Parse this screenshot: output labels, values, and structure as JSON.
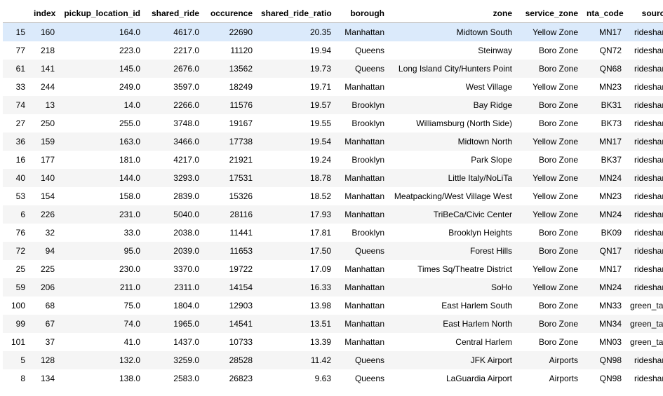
{
  "table": {
    "columns": [
      "",
      "index",
      "pickup_location_id",
      "shared_ride",
      "occurence",
      "shared_ride_ratio",
      "borough",
      "zone",
      "service_zone",
      "nta_code",
      "source"
    ],
    "rows": [
      [
        "15",
        "160",
        "164.0",
        "4617.0",
        "22690",
        "20.35",
        "Manhattan",
        "Midtown South",
        "Yellow Zone",
        "MN17",
        "rideshare"
      ],
      [
        "77",
        "218",
        "223.0",
        "2217.0",
        "11120",
        "19.94",
        "Queens",
        "Steinway",
        "Boro Zone",
        "QN72",
        "rideshare"
      ],
      [
        "61",
        "141",
        "145.0",
        "2676.0",
        "13562",
        "19.73",
        "Queens",
        "Long Island City/Hunters Point",
        "Boro Zone",
        "QN68",
        "rideshare"
      ],
      [
        "33",
        "244",
        "249.0",
        "3597.0",
        "18249",
        "19.71",
        "Manhattan",
        "West Village",
        "Yellow Zone",
        "MN23",
        "rideshare"
      ],
      [
        "74",
        "13",
        "14.0",
        "2266.0",
        "11576",
        "19.57",
        "Brooklyn",
        "Bay Ridge",
        "Boro Zone",
        "BK31",
        "rideshare"
      ],
      [
        "27",
        "250",
        "255.0",
        "3748.0",
        "19167",
        "19.55",
        "Brooklyn",
        "Williamsburg (North Side)",
        "Boro Zone",
        "BK73",
        "rideshare"
      ],
      [
        "36",
        "159",
        "163.0",
        "3466.0",
        "17738",
        "19.54",
        "Manhattan",
        "Midtown North",
        "Yellow Zone",
        "MN17",
        "rideshare"
      ],
      [
        "16",
        "177",
        "181.0",
        "4217.0",
        "21921",
        "19.24",
        "Brooklyn",
        "Park Slope",
        "Boro Zone",
        "BK37",
        "rideshare"
      ],
      [
        "40",
        "140",
        "144.0",
        "3293.0",
        "17531",
        "18.78",
        "Manhattan",
        "Little Italy/NoLiTa",
        "Yellow Zone",
        "MN24",
        "rideshare"
      ],
      [
        "53",
        "154",
        "158.0",
        "2839.0",
        "15326",
        "18.52",
        "Manhattan",
        "Meatpacking/West Village West",
        "Yellow Zone",
        "MN23",
        "rideshare"
      ],
      [
        "6",
        "226",
        "231.0",
        "5040.0",
        "28116",
        "17.93",
        "Manhattan",
        "TriBeCa/Civic Center",
        "Yellow Zone",
        "MN24",
        "rideshare"
      ],
      [
        "76",
        "32",
        "33.0",
        "2038.0",
        "11441",
        "17.81",
        "Brooklyn",
        "Brooklyn Heights",
        "Boro Zone",
        "BK09",
        "rideshare"
      ],
      [
        "72",
        "94",
        "95.0",
        "2039.0",
        "11653",
        "17.50",
        "Queens",
        "Forest Hills",
        "Boro Zone",
        "QN17",
        "rideshare"
      ],
      [
        "25",
        "225",
        "230.0",
        "3370.0",
        "19722",
        "17.09",
        "Manhattan",
        "Times Sq/Theatre District",
        "Yellow Zone",
        "MN17",
        "rideshare"
      ],
      [
        "59",
        "206",
        "211.0",
        "2311.0",
        "14154",
        "16.33",
        "Manhattan",
        "SoHo",
        "Yellow Zone",
        "MN24",
        "rideshare"
      ],
      [
        "100",
        "68",
        "75.0",
        "1804.0",
        "12903",
        "13.98",
        "Manhattan",
        "East Harlem South",
        "Boro Zone",
        "MN33",
        "green_taxi"
      ],
      [
        "99",
        "67",
        "74.0",
        "1965.0",
        "14541",
        "13.51",
        "Manhattan",
        "East Harlem North",
        "Boro Zone",
        "MN34",
        "green_taxi"
      ],
      [
        "101",
        "37",
        "41.0",
        "1437.0",
        "10733",
        "13.39",
        "Manhattan",
        "Central Harlem",
        "Boro Zone",
        "MN03",
        "green_taxi"
      ],
      [
        "5",
        "128",
        "132.0",
        "3259.0",
        "28528",
        "11.42",
        "Queens",
        "JFK Airport",
        "Airports",
        "QN98",
        "rideshare"
      ],
      [
        "8",
        "134",
        "138.0",
        "2583.0",
        "26823",
        "9.63",
        "Queens",
        "LaGuardia Airport",
        "Airports",
        "QN98",
        "rideshare"
      ]
    ],
    "highlighted_row": 0,
    "colors": {
      "stripe": "#f5f5f5",
      "hover": "#dbeafb",
      "header_border": "#b0b0b0"
    }
  }
}
